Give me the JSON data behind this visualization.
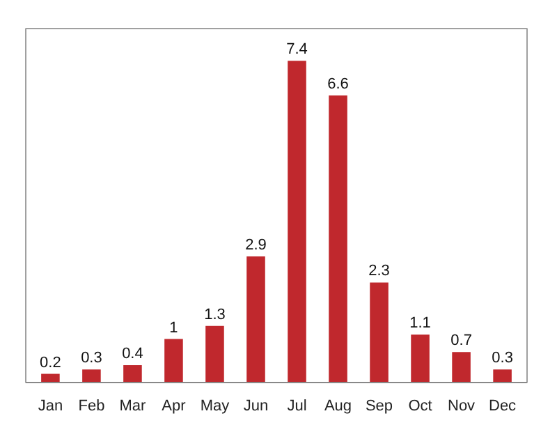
{
  "chart_data": {
    "type": "bar",
    "categories": [
      "Jan",
      "Feb",
      "Mar",
      "Apr",
      "May",
      "Jun",
      "Jul",
      "Aug",
      "Sep",
      "Oct",
      "Nov",
      "Dec"
    ],
    "values": [
      0.2,
      0.3,
      0.4,
      1,
      1.3,
      2.9,
      7.4,
      6.6,
      2.3,
      1.1,
      0.7,
      0.3
    ],
    "color": "#c0282d",
    "data_labels": true,
    "grid": false
  }
}
